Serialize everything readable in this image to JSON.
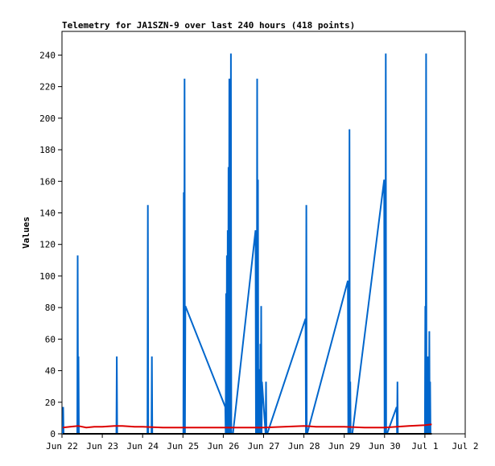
{
  "chart_data": {
    "type": "line",
    "title": "Telemetry for JA1SZN-9 over last 240 hours (418 points)",
    "xlabel": "",
    "ylabel": "Values",
    "ylim": [
      0,
      255
    ],
    "xlim_days": [
      0,
      10
    ],
    "x_tick_labels": [
      "Jun 22",
      "Jun 23",
      "Jun 24",
      "Jun 25",
      "Jun 26",
      "Jun 27",
      "Jun 28",
      "Jun 29",
      "Jun 30",
      "Jul 1",
      "Jul 2"
    ],
    "y_ticks": [
      0,
      20,
      40,
      60,
      80,
      100,
      120,
      140,
      160,
      180,
      200,
      220,
      240
    ],
    "grid": false,
    "series": [
      {
        "color": "#0066cc",
        "x": [
          0.02,
          0.03,
          0.04,
          0.38,
          0.39,
          0.4,
          0.41,
          0.42,
          0.43,
          1.35,
          1.36,
          1.37,
          2.12,
          2.13,
          2.14,
          2.22,
          2.23,
          2.24,
          3.01,
          3.02,
          3.03,
          3.04,
          3.05,
          3.06,
          4.05,
          4.06,
          4.07,
          4.08,
          4.09,
          4.1,
          4.11,
          4.12,
          4.13,
          4.14,
          4.15,
          4.16,
          4.17,
          4.18,
          4.19,
          4.2,
          4.21,
          4.22,
          4.23,
          4.24,
          4.8,
          4.81,
          4.82,
          4.83,
          4.84,
          4.85,
          4.86,
          4.87,
          4.88,
          4.89,
          4.9,
          4.91,
          4.92,
          4.93,
          4.94,
          4.95,
          4.96,
          5.05,
          5.06,
          5.07,
          5.08,
          5.09,
          6.04,
          6.05,
          6.06,
          6.07,
          6.08,
          7.09,
          7.1,
          7.11,
          7.12,
          7.13,
          7.14,
          7.15,
          7.16,
          7.17,
          7.18,
          7.19,
          7.2,
          7.99,
          8.0,
          8.01,
          8.02,
          8.03,
          8.04,
          8.05,
          8.06,
          8.3,
          8.31,
          8.32,
          8.33,
          8.34,
          8.35,
          8.36,
          9.0,
          9.01,
          9.02,
          9.03,
          9.04,
          9.05,
          9.06,
          9.07,
          9.08,
          9.09,
          9.1,
          9.11,
          9.12,
          9.13,
          9.14,
          9.15,
          9.16,
          9.17
        ],
        "values": [
          0,
          17,
          0,
          0,
          113,
          0,
          49,
          0,
          0,
          0,
          49,
          0,
          0,
          145,
          0,
          0,
          49,
          0,
          0,
          153,
          0,
          225,
          0,
          81,
          17,
          0,
          89,
          0,
          113,
          0,
          129,
          0,
          169,
          0,
          225,
          0,
          17,
          0,
          241,
          0,
          0,
          0,
          0,
          0,
          129,
          0,
          89,
          0,
          225,
          0,
          161,
          0,
          41,
          0,
          41,
          0,
          57,
          0,
          81,
          0,
          33,
          0,
          33,
          0,
          0,
          0,
          73,
          0,
          145,
          0,
          0,
          97,
          0,
          33,
          0,
          193,
          0,
          33,
          0,
          0,
          0,
          0,
          0,
          161,
          0,
          97,
          0,
          241,
          0,
          0,
          0,
          17,
          0,
          33,
          0,
          0,
          0,
          0,
          0,
          81,
          0,
          241,
          0,
          25,
          0,
          49,
          0,
          41,
          0,
          65,
          0,
          33,
          0,
          0,
          0,
          0
        ]
      },
      {
        "color": "#dd0000",
        "x": [
          0.02,
          0.2,
          0.4,
          0.6,
          0.8,
          1.0,
          1.3,
          1.5,
          1.8,
          2.0,
          2.5,
          3.0,
          3.5,
          4.0,
          4.5,
          5.0,
          5.5,
          6.0,
          6.3,
          6.6,
          7.0,
          7.5,
          8.0,
          8.3,
          8.6,
          9.0,
          9.17
        ],
        "values": [
          4,
          4.5,
          5,
          4,
          4.5,
          4.5,
          5,
          5,
          4.5,
          4.5,
          4,
          4,
          4,
          4,
          4,
          4,
          4.5,
          5,
          4.5,
          4.5,
          4.5,
          4,
          4,
          4.5,
          5,
          5.5,
          6
        ]
      },
      {
        "color": "#000000",
        "x": [
          0.02,
          9.17
        ],
        "values": [
          0,
          0
        ]
      }
    ]
  }
}
